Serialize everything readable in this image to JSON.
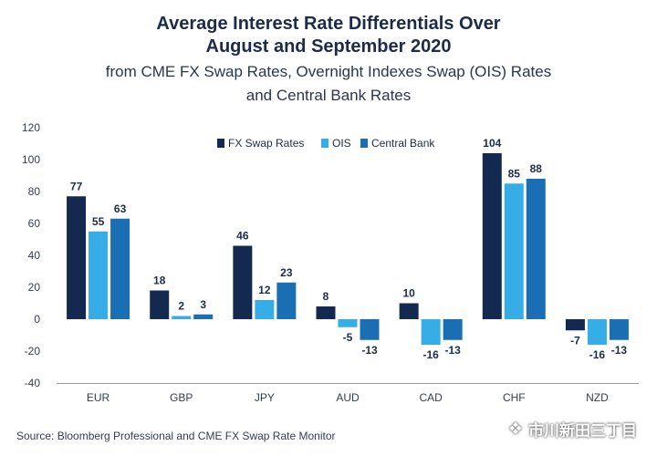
{
  "title_line1": "Average Interest Rate Differentials Over",
  "title_line2": "August and September 2020",
  "subtitle_line1": "from CME FX Swap Rates, Overnight Indexes Swap (OIS) Rates",
  "subtitle_line2": "and Central Bank Rates",
  "source": "Source: Bloomberg Professional and CME FX Swap Rate Monitor",
  "watermark": "市川新田三丁目",
  "chart_data": {
    "type": "bar",
    "categories": [
      "EUR",
      "GBP",
      "JPY",
      "AUD",
      "CAD",
      "CHF",
      "NZD"
    ],
    "series": [
      {
        "name": "FX Swap Rates",
        "color": "#14294f",
        "values": [
          77,
          18,
          46,
          8,
          10,
          104,
          -7
        ]
      },
      {
        "name": "OIS",
        "color": "#36ade6",
        "values": [
          55,
          2,
          12,
          -5,
          -16,
          85,
          -16
        ]
      },
      {
        "name": "Central Bank",
        "color": "#1a6fb4",
        "values": [
          63,
          3,
          23,
          -13,
          -13,
          88,
          -13
        ]
      }
    ],
    "ylim": [
      -40,
      120
    ],
    "yticks": [
      -40,
      -20,
      0,
      20,
      40,
      60,
      80,
      100,
      120
    ],
    "legend_position": "top-center",
    "grid": false
  }
}
